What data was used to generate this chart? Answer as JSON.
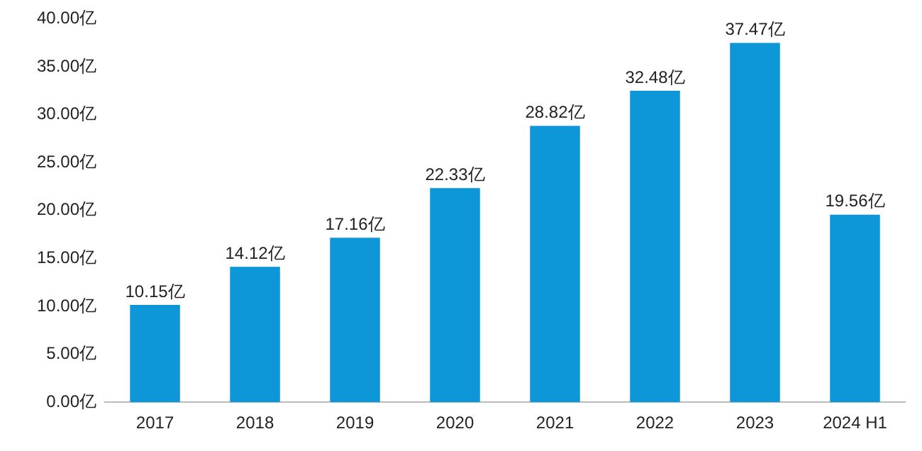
{
  "chart_data": {
    "type": "bar",
    "categories": [
      "2017",
      "2018",
      "2019",
      "2020",
      "2021",
      "2022",
      "2023",
      "2024 H1"
    ],
    "values": [
      10.15,
      14.12,
      17.16,
      22.33,
      28.82,
      32.48,
      37.47,
      19.56
    ],
    "value_labels": [
      "10.15亿",
      "14.12亿",
      "17.16亿",
      "22.33亿",
      "28.82亿",
      "32.48亿",
      "37.47亿",
      "19.56亿"
    ],
    "color": "#0d96d8",
    "ylim": [
      0,
      40
    ],
    "yticks": [
      {
        "value": 0,
        "label": "0.00亿"
      },
      {
        "value": 5,
        "label": "5.00亿"
      },
      {
        "value": 10,
        "label": "10.00亿"
      },
      {
        "value": 15,
        "label": "15.00亿"
      },
      {
        "value": 20,
        "label": "20.00亿"
      },
      {
        "value": 25,
        "label": "25.00亿"
      },
      {
        "value": 30,
        "label": "30.00亿"
      },
      {
        "value": 35,
        "label": "35.00亿"
      },
      {
        "value": 40,
        "label": "40.00亿"
      }
    ],
    "grid": false,
    "legend": false
  }
}
